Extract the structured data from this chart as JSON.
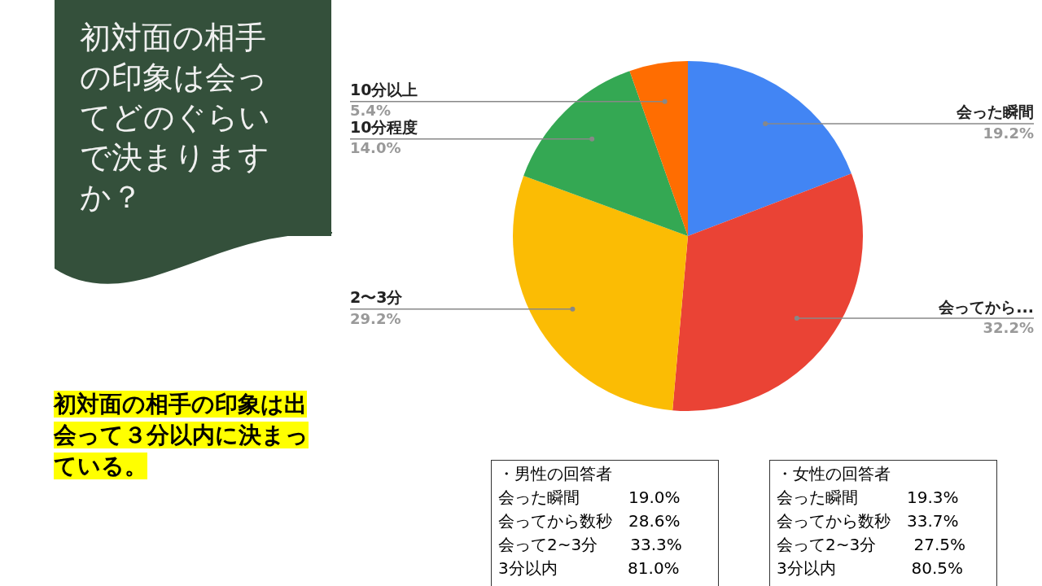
{
  "chart_data": {
    "type": "pie",
    "title": "初対面の相手の印象は会ってどのぐらいで決まりますか？",
    "categories": [
      "会った瞬間",
      "会ってから...",
      "2〜3分",
      "10分程度",
      "10分以上"
    ],
    "values": [
      19.2,
      32.2,
      29.2,
      14.0,
      5.4
    ],
    "value_labels": [
      "19.2%",
      "32.2%",
      "29.2%",
      "14.0%",
      "5.4%"
    ],
    "colors": [
      "#4285f4",
      "#ea4335",
      "#fbbc04",
      "#34a853",
      "#ff6d01"
    ],
    "legend": false,
    "annotations": [
      "初対面の相手の印象は出会って３分以内に決まっている。",
      "・男性の回答者",
      "会った瞬間　　　19.0%",
      "会ってから数秒　28.6%",
      "会って2~3分　　33.3%",
      "3分以内　　　　 81.0%",
      "・女性の回答者",
      "会った瞬間　　　19.3%",
      "会ってから数秒　33.7%",
      "会って2~3分　　 27.5%",
      "3分以内　　　　  80.5%"
    ]
  }
}
